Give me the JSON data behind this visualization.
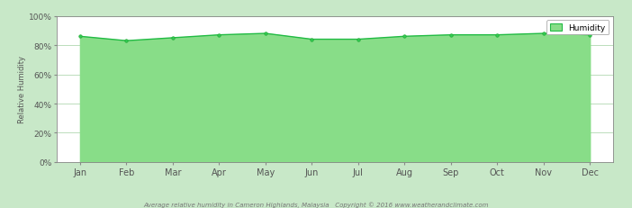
{
  "months": [
    "Jan",
    "Feb",
    "Mar",
    "Apr",
    "May",
    "Jun",
    "Jul",
    "Aug",
    "Sep",
    "Oct",
    "Nov",
    "Dec"
  ],
  "humidity": [
    86,
    83,
    85,
    87,
    88,
    84,
    84,
    86,
    87,
    87,
    88,
    87
  ],
  "line_color": "#22bb44",
  "fill_color": "#88dd88",
  "marker_color": "#22aa33",
  "marker_face": "#33cc55",
  "figure_bg_color": "#c8e8c8",
  "plot_bg_color": "#ffffff",
  "grid_color": "#bbddbb",
  "title_text": "Average relative humidity in Cameron Highlands, Malaysia   Copyright © 2016 www.weatherandclimate.com",
  "ylabel": "Relative Humidity",
  "legend_label": "Humidity",
  "ylim": [
    0,
    100
  ],
  "yticks": [
    0,
    20,
    40,
    60,
    80,
    100
  ],
  "ytick_labels": [
    "0%",
    "20%",
    "40%",
    "60%",
    "80%",
    "100%"
  ],
  "figsize": [
    7.02,
    2.32
  ],
  "dpi": 100
}
